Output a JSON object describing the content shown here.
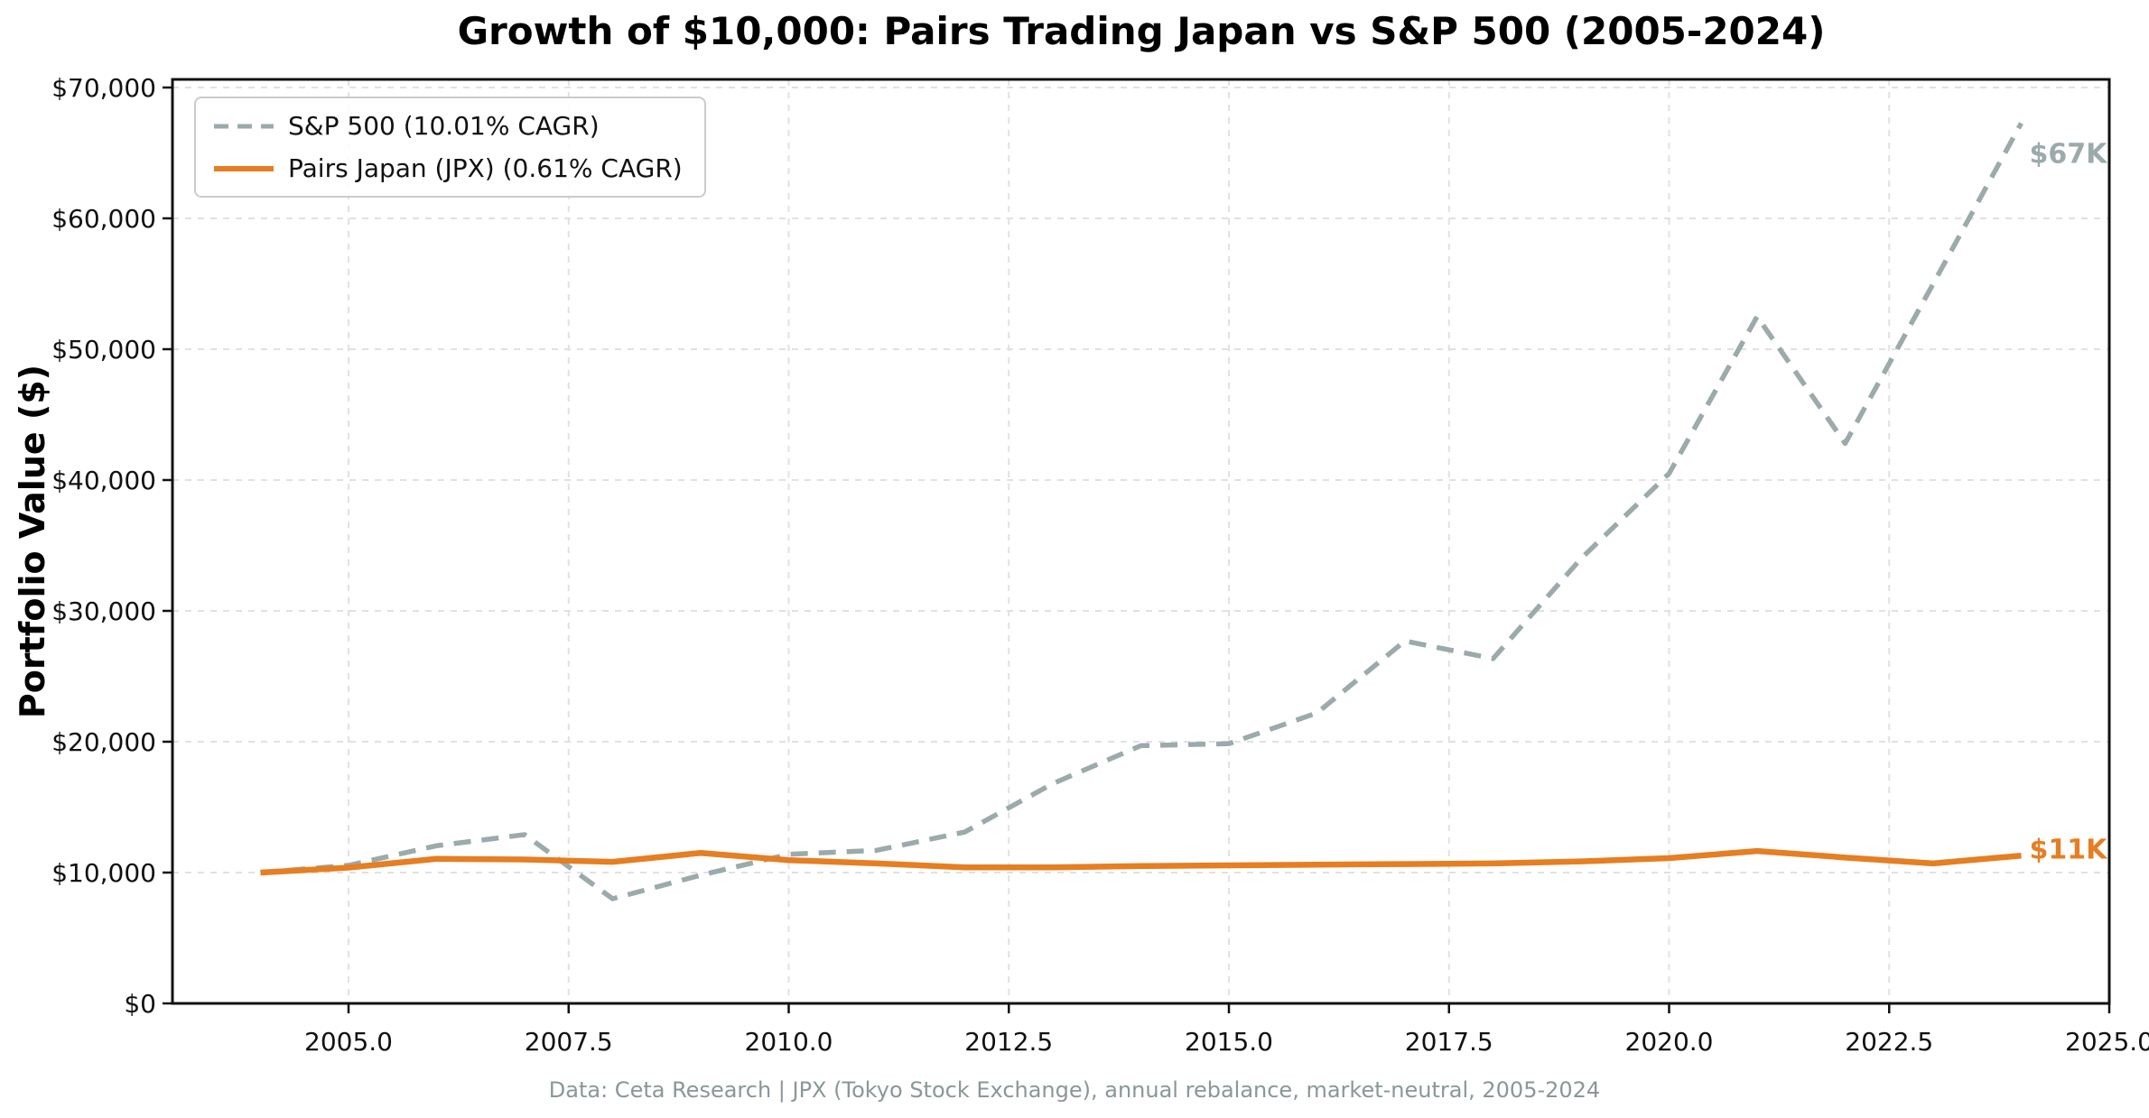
{
  "chart_data": {
    "type": "line",
    "title": "Growth of $10,000: Pairs Trading Japan vs S&P 500 (2005-2024)",
    "ylabel": "Portfolio Value ($)",
    "xlabel": "",
    "footnote": "Data: Ceta Research | JPX (Tokyo Stock Exchange), annual rebalance, market-neutral, 2005-2024",
    "grid": true,
    "legend_position": "upper left",
    "xlim": [
      2003,
      2025
    ],
    "ylim": [
      0,
      70620
    ],
    "xticks": [
      2005,
      2007.5,
      2010,
      2012.5,
      2015,
      2017.5,
      2020,
      2022.5,
      2025
    ],
    "xtick_labels": [
      "2005.0",
      "2007.5",
      "2010.0",
      "2012.5",
      "2015.0",
      "2017.5",
      "2020.0",
      "2022.5",
      "2025.0"
    ],
    "yticks": [
      0,
      10000,
      20000,
      30000,
      40000,
      50000,
      60000,
      70000
    ],
    "ytick_labels": [
      "$0",
      "$10,000",
      "$20,000",
      "$30,000",
      "$40,000",
      "$50,000",
      "$60,000",
      "$70,000"
    ],
    "x": [
      2004,
      2005,
      2006,
      2007,
      2008,
      2009,
      2010,
      2011,
      2012,
      2013,
      2014,
      2015,
      2016,
      2017,
      2018,
      2019,
      2020,
      2021,
      2022,
      2023,
      2024
    ],
    "series": [
      {
        "name": "S&P 500",
        "label": "S&P 500 (10.01% CAGR)",
        "color": "#9baaab",
        "style": "dashed",
        "end_annotation": "$67K",
        "values": [
          10000,
          10550,
          12050,
          12900,
          8000,
          9800,
          11400,
          11700,
          13100,
          16800,
          19700,
          19850,
          22200,
          27700,
          26350,
          34000,
          40500,
          52500,
          42800,
          55000,
          67270
        ]
      },
      {
        "name": "Pairs Japan (JPX)",
        "label": "Pairs Japan (JPX) (0.61% CAGR)",
        "color": "#e67e22",
        "style": "solid",
        "end_annotation": "$11K",
        "values": [
          10000,
          10380,
          11050,
          11000,
          10820,
          11500,
          10950,
          10700,
          10400,
          10400,
          10500,
          10550,
          10600,
          10650,
          10700,
          10850,
          11100,
          11650,
          11150,
          10700,
          11290
        ]
      }
    ],
    "colors": {
      "grid": "#e1e1e1",
      "spine": "#111111",
      "title": "#000000",
      "footnote": "#8a9798"
    }
  }
}
